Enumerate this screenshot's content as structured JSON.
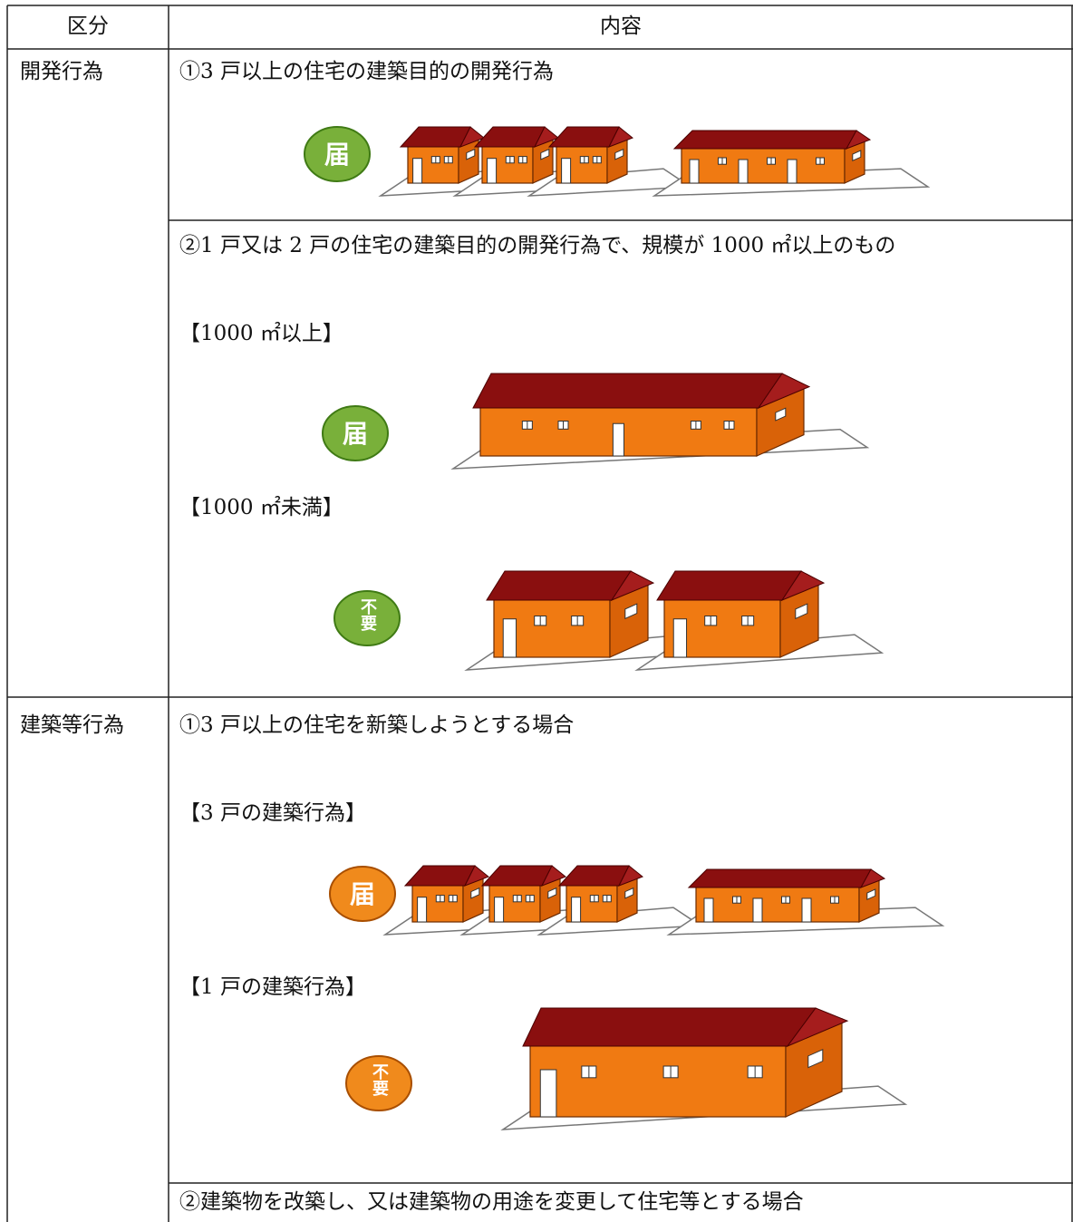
{
  "table": {
    "header": [
      "区分",
      "内容"
    ],
    "rows": [
      {
        "category": "開発行為",
        "items": [
          {
            "text": "①3 戸以上の住宅の建築目的の開発行為",
            "figures": [
              {
                "badge": "届"
              }
            ]
          },
          {
            "text": "②1 戸又は 2 戸の住宅の建築目的の開発行為で、規模が 1000 ㎡以上のもの",
            "figures": [
              {
                "label": "【1000 ㎡以上】",
                "badge": "届"
              },
              {
                "label": "【1000 ㎡未満】",
                "badge": "不要"
              }
            ]
          }
        ]
      },
      {
        "category": "建築等行為",
        "items": [
          {
            "text": "①3 戸以上の住宅を新築しようとする場合",
            "figures": [
              {
                "label": "【3 戸の建築行為】",
                "badge": "届"
              },
              {
                "label": "【1 戸の建築行為】",
                "badge": "不要"
              }
            ]
          },
          {
            "text": "②建築物を改築し、又は建築物の用途を変更して住宅等とする場合"
          }
        ]
      }
    ]
  }
}
